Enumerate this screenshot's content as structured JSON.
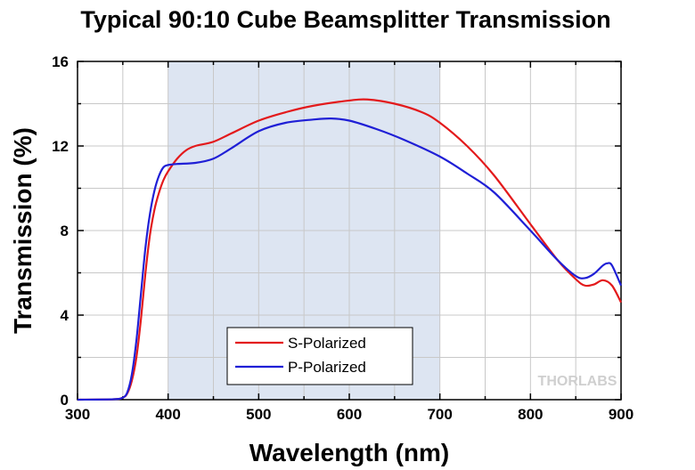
{
  "chart_data": {
    "type": "line",
    "title": "Typical 90:10 Cube Beamsplitter Transmission",
    "xlabel": "Wavelength (nm)",
    "ylabel": "Transmission (%)",
    "xlim": [
      300,
      900
    ],
    "ylim": [
      0,
      16
    ],
    "xticks": [
      "300",
      "400",
      "500",
      "600",
      "700",
      "800",
      "900"
    ],
    "yticks": [
      "0",
      "4",
      "8",
      "12",
      "16"
    ],
    "grid": true,
    "legend_position": "bottom-center",
    "shaded_region": [
      400,
      700
    ],
    "watermark": "THORLABS",
    "series": [
      {
        "name": "S-Polarized",
        "color": "#e31a1c",
        "x": [
          300,
          340,
          350,
          355,
          360,
          365,
          370,
          375,
          380,
          385,
          390,
          395,
          400,
          410,
          420,
          430,
          450,
          470,
          500,
          530,
          560,
          600,
          620,
          650,
          680,
          700,
          730,
          760,
          800,
          830,
          850,
          860,
          870,
          880,
          890,
          900
        ],
        "y": [
          0,
          0.02,
          0.1,
          0.3,
          0.9,
          2.0,
          3.8,
          6.0,
          7.8,
          9.0,
          9.8,
          10.4,
          10.8,
          11.4,
          11.8,
          12.0,
          12.2,
          12.6,
          13.2,
          13.6,
          13.9,
          14.15,
          14.2,
          14.0,
          13.6,
          13.1,
          12.0,
          10.6,
          8.3,
          6.6,
          5.7,
          5.4,
          5.45,
          5.65,
          5.4,
          4.6
        ]
      },
      {
        "name": "P-Polarized",
        "color": "#1f1fd6",
        "x": [
          300,
          340,
          350,
          355,
          360,
          365,
          370,
          375,
          380,
          385,
          390,
          395,
          400,
          410,
          430,
          450,
          470,
          500,
          530,
          560,
          580,
          600,
          630,
          660,
          700,
          730,
          760,
          800,
          830,
          850,
          860,
          870,
          880,
          885,
          890,
          900
        ],
        "y": [
          0,
          0.02,
          0.1,
          0.35,
          1.2,
          2.8,
          5.0,
          7.2,
          8.8,
          9.9,
          10.6,
          11.0,
          11.1,
          11.15,
          11.2,
          11.4,
          11.9,
          12.7,
          13.1,
          13.25,
          13.3,
          13.2,
          12.8,
          12.3,
          11.5,
          10.7,
          9.8,
          8.0,
          6.6,
          5.85,
          5.75,
          5.95,
          6.35,
          6.45,
          6.35,
          5.4
        ]
      }
    ]
  }
}
